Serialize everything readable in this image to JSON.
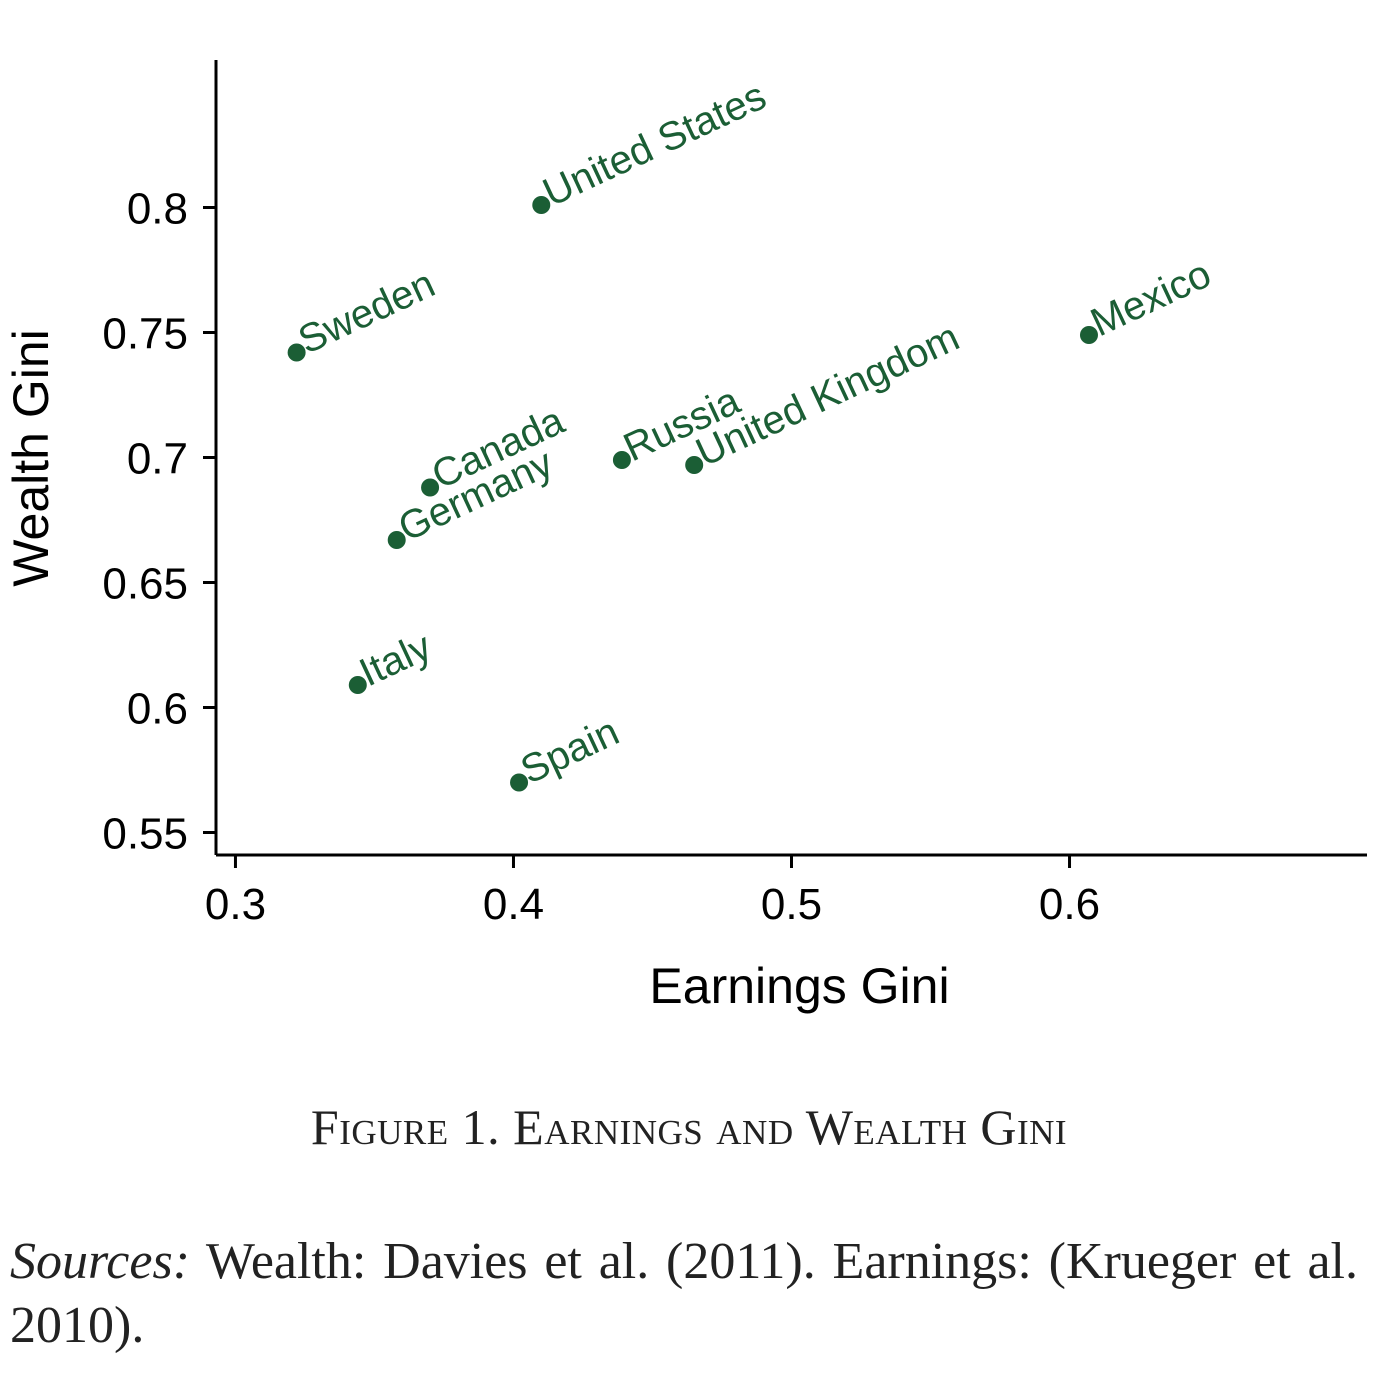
{
  "chart_data": {
    "type": "scatter",
    "xlabel": "Earnings Gini",
    "ylabel": "Wealth Gini",
    "xlim": [
      0.293,
      0.707
    ],
    "ylim": [
      0.541,
      0.859
    ],
    "xticks": [
      0.3,
      0.4,
      0.5,
      0.6
    ],
    "xtick_labels": [
      "0.3",
      "0.4",
      "0.5",
      "0.6"
    ],
    "yticks": [
      0.55,
      0.6,
      0.65,
      0.7,
      0.75,
      0.8
    ],
    "ytick_labels": [
      "0.55",
      "0.6",
      "0.65",
      "0.7",
      "0.75",
      "0.8"
    ],
    "grid": false,
    "point_color": "#1b5e35",
    "points": [
      {
        "label": "United States",
        "x": 0.41,
        "y": 0.801
      },
      {
        "label": "Sweden",
        "x": 0.322,
        "y": 0.742
      },
      {
        "label": "Mexico",
        "x": 0.607,
        "y": 0.749
      },
      {
        "label": "Canada",
        "x": 0.37,
        "y": 0.688
      },
      {
        "label": "Germany",
        "x": 0.358,
        "y": 0.667
      },
      {
        "label": "Russia",
        "x": 0.439,
        "y": 0.699
      },
      {
        "label": "United Kingdom",
        "x": 0.465,
        "y": 0.697
      },
      {
        "label": "Italy",
        "x": 0.344,
        "y": 0.609
      },
      {
        "label": "Spain",
        "x": 0.402,
        "y": 0.57
      }
    ]
  },
  "caption": "Figure 1. Earnings and Wealth Gini",
  "sources": {
    "lead": "Sources:",
    "text": " Wealth: Davies et al. (2011). Earnings: (Krueger et al. 2010)."
  }
}
